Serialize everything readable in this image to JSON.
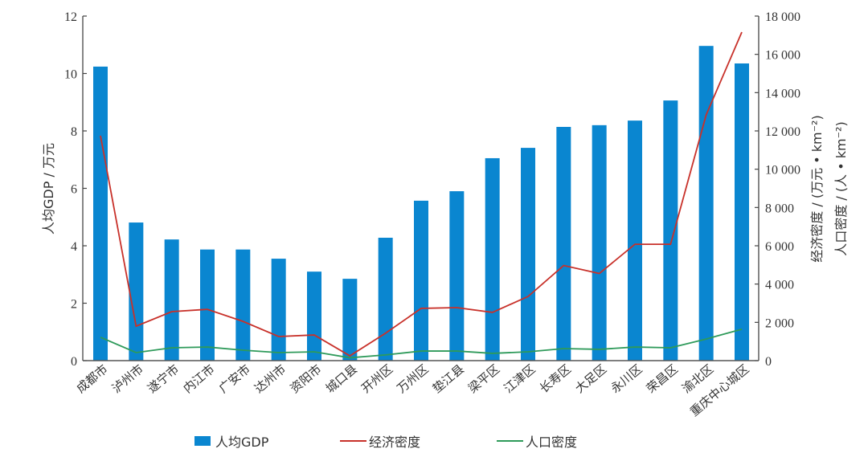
{
  "chart_data": {
    "type": "bar+line",
    "title": "",
    "categories": [
      "成都市",
      "泸州市",
      "遂宁市",
      "内江市",
      "广安市",
      "达州市",
      "资阳市",
      "城口县",
      "开州区",
      "万州区",
      "垫江县",
      "梁平区",
      "江津区",
      "长寿区",
      "大足区",
      "永川区",
      "荣昌区",
      "渝北区",
      "重庆中心城区"
    ],
    "ylabel_left": "人均GDP / 万元",
    "ylabel_right_1": "经济密度 / (万元 • km⁻²)",
    "ylabel_right_2": "人口密度 / (人 • km⁻²)",
    "ylim_left": [
      0,
      12
    ],
    "yticks_left": [
      "0",
      "2",
      "4",
      "6",
      "8",
      "10",
      "12"
    ],
    "ylim_right": [
      0,
      18000
    ],
    "yticks_right": [
      "0",
      "2 000",
      "4 000",
      "6 000",
      "8 000",
      "10 000",
      "12 000",
      "14 000",
      "16 000",
      "18 000"
    ],
    "series": [
      {
        "name": "人均GDP",
        "type": "bar",
        "axis": "left",
        "color": "#0a86d0",
        "values": [
          10.24,
          4.81,
          4.22,
          3.87,
          3.87,
          3.55,
          3.1,
          2.85,
          4.28,
          5.57,
          5.9,
          7.05,
          7.41,
          8.14,
          8.2,
          8.36,
          9.06,
          10.96,
          10.35
        ]
      },
      {
        "name": "经济密度",
        "type": "line",
        "axis": "right",
        "color": "#c8312a",
        "values": [
          11750,
          1800,
          2560,
          2680,
          2050,
          1260,
          1340,
          250,
          1430,
          2730,
          2770,
          2520,
          3350,
          4970,
          4550,
          6080,
          6080,
          12840,
          17160
        ]
      },
      {
        "name": "人口密度",
        "type": "line",
        "axis": "right",
        "color": "#2e9a5a",
        "values": [
          1220,
          420,
          670,
          710,
          545,
          420,
          460,
          150,
          300,
          500,
          500,
          380,
          460,
          630,
          590,
          710,
          670,
          1130,
          1640
        ]
      }
    ],
    "legend_position": "bottom",
    "grid": false
  },
  "legend": {
    "items": [
      {
        "label": "人均GDP",
        "kind": "bar",
        "color": "#0a86d0"
      },
      {
        "label": "经济密度",
        "kind": "line",
        "color": "#c8312a"
      },
      {
        "label": "人口密度",
        "kind": "line",
        "color": "#2e9a5a"
      }
    ]
  }
}
